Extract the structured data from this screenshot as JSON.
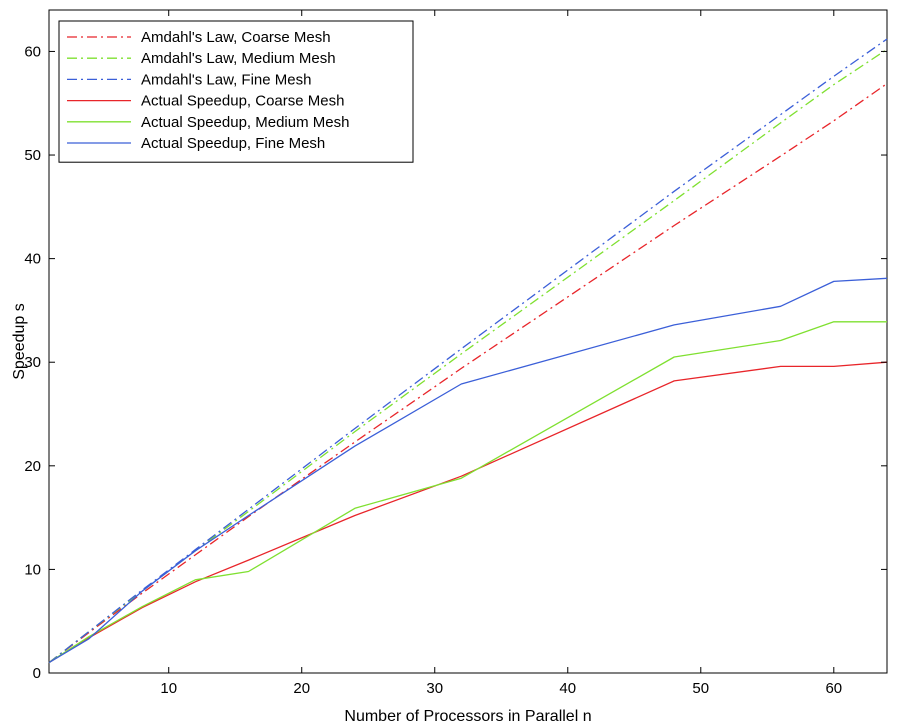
{
  "chart_data": {
    "type": "line",
    "title": "",
    "xlabel": "Number of Processors in Parallel n",
    "ylabel": "Speedup s",
    "xlim": [
      1,
      64
    ],
    "ylim": [
      0,
      64
    ],
    "xticks": [
      10,
      20,
      30,
      40,
      50,
      60
    ],
    "yticks": [
      0,
      10,
      20,
      30,
      40,
      50,
      60
    ],
    "grid": false,
    "legend_position": "top-left",
    "series": [
      {
        "name": "Amdahl's Law, Coarse Mesh",
        "color": "#e8252a",
        "style": "dashdot",
        "x": [
          1,
          4,
          8,
          12,
          16,
          24,
          32,
          48,
          56,
          60,
          64
        ],
        "y": [
          1.0,
          3.9,
          7.7,
          11.4,
          15.1,
          22.3,
          29.4,
          43.2,
          49.9,
          53.3,
          56.9
        ]
      },
      {
        "name": "Amdahl's Law, Medium Mesh",
        "color": "#7fe030",
        "style": "dashdot",
        "x": [
          1,
          4,
          8,
          12,
          16,
          24,
          32,
          48,
          56,
          60,
          64
        ],
        "y": [
          1.0,
          4.0,
          7.9,
          11.8,
          15.6,
          23.3,
          30.8,
          45.6,
          53.1,
          56.8,
          60.2
        ]
      },
      {
        "name": "Amdahl's Law, Fine Mesh",
        "color": "#3b5fd8",
        "style": "dashdot",
        "x": [
          1,
          4,
          8,
          12,
          16,
          24,
          32,
          48,
          56,
          60,
          64
        ],
        "y": [
          1.0,
          4.0,
          8.0,
          11.9,
          15.8,
          23.6,
          31.3,
          46.5,
          53.9,
          57.6,
          61.2
        ]
      },
      {
        "name": "Actual Speedup, Coarse Mesh",
        "color": "#e8252a",
        "style": "solid",
        "x": [
          1,
          4,
          8,
          12,
          16,
          24,
          32,
          48,
          56,
          60,
          64
        ],
        "y": [
          1.0,
          3.4,
          6.3,
          8.8,
          10.9,
          15.2,
          19.0,
          28.2,
          29.6,
          29.6,
          30.0
        ]
      },
      {
        "name": "Actual Speedup, Medium Mesh",
        "color": "#7fe030",
        "style": "solid",
        "x": [
          1,
          4,
          8,
          12,
          16,
          24,
          32,
          48,
          56,
          60,
          64
        ],
        "y": [
          1.0,
          3.5,
          6.4,
          9.0,
          9.8,
          15.9,
          18.8,
          30.5,
          32.1,
          33.9,
          33.9
        ]
      },
      {
        "name": "Actual Speedup, Fine Mesh",
        "color": "#3b5fd8",
        "style": "solid",
        "x": [
          1,
          4,
          8,
          12,
          16,
          24,
          32,
          48,
          56,
          60,
          64
        ],
        "y": [
          1.0,
          3.3,
          7.9,
          11.8,
          15.2,
          21.9,
          27.9,
          33.6,
          35.4,
          37.8,
          38.1
        ]
      }
    ]
  }
}
